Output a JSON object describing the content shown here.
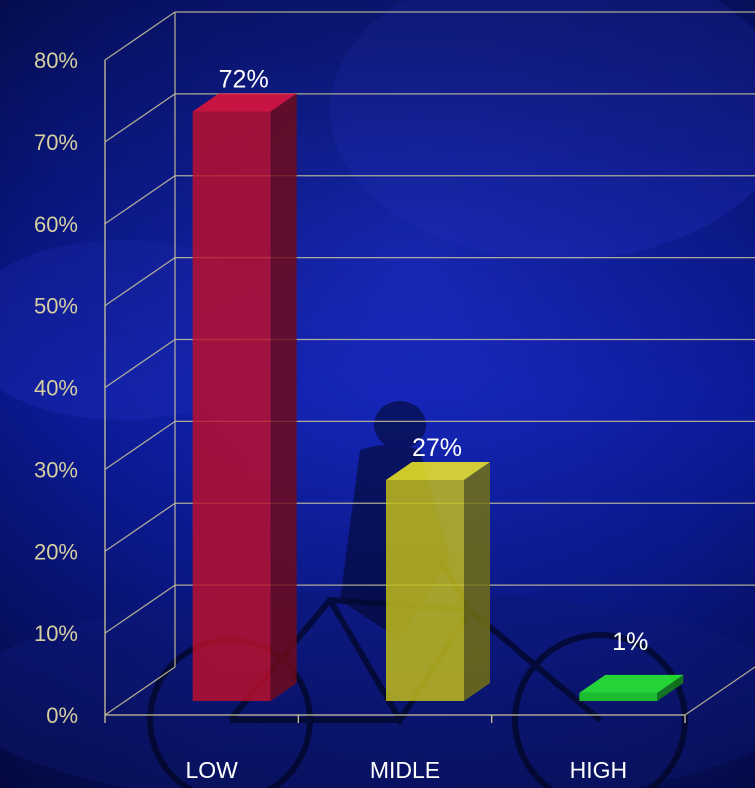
{
  "chart_data": {
    "type": "bar",
    "title": "",
    "xlabel": "",
    "ylabel": "",
    "categories": [
      "LOW",
      "MIDLE",
      "HIGH"
    ],
    "values": [
      72,
      27,
      1
    ],
    "value_labels": [
      "72%",
      "27%",
      "1%"
    ],
    "ylim": [
      0,
      80
    ],
    "ytick_values": [
      0,
      10,
      20,
      30,
      40,
      50,
      60,
      70,
      80
    ],
    "yticks": [
      "0%",
      "10%",
      "20%",
      "30%",
      "40%",
      "50%",
      "60%",
      "70%",
      "80%"
    ],
    "grid": true,
    "style": "3d",
    "colors": [
      "#c0102a",
      "#c8c21a",
      "#22e022"
    ]
  },
  "colors": {
    "axis_text": "#d6cfa0",
    "grid": "#c9c39a",
    "label_text": "#ffffff"
  }
}
